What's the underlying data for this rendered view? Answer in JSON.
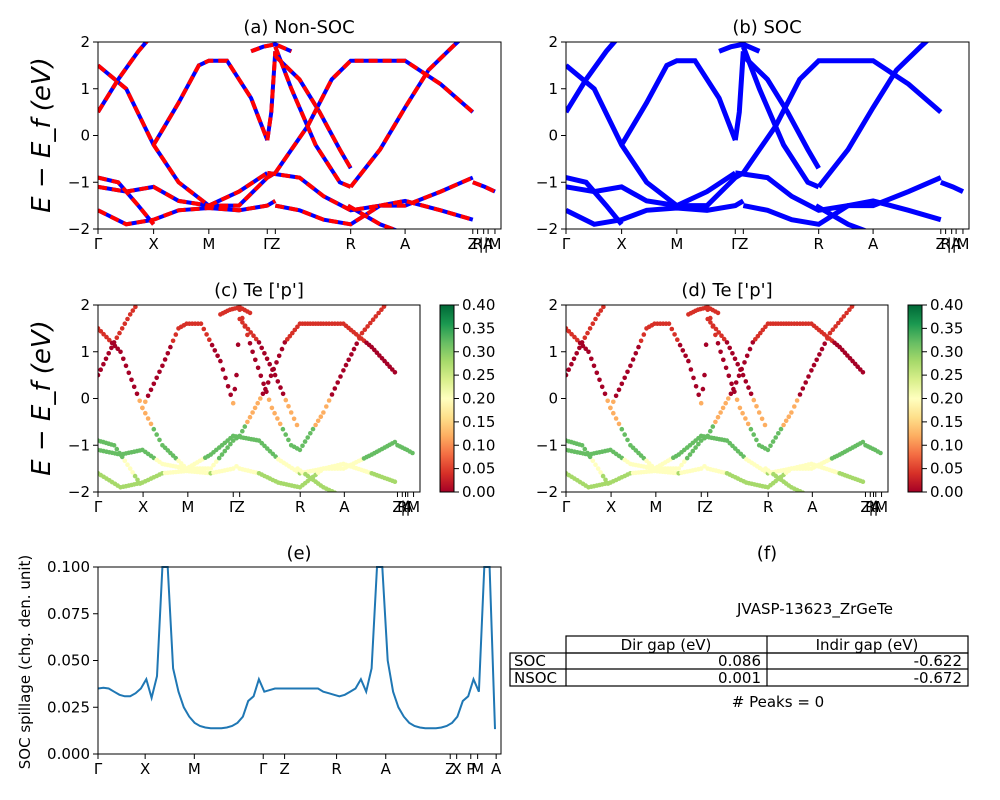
{
  "figure": {
    "material_id": "JVASP-13623_ZrGeTe",
    "peaks_text": "# Peaks = 0"
  },
  "chart_data": [
    {
      "id": "a",
      "type": "line",
      "title": "(a) Non-SOC",
      "ylabel": "E − E_f (eV)",
      "ylim": [
        -2,
        2
      ],
      "yticks": [
        "2",
        "1",
        "0",
        "−1",
        "−2"
      ],
      "xticks": [
        "Γ",
        "X",
        "M",
        "Γ",
        "Z",
        "R",
        "A",
        "Z",
        "R",
        "||",
        "A",
        "M"
      ],
      "series": [
        {
          "style": "blue solid",
          "color": "#0000ff"
        },
        {
          "style": "red dashed",
          "color": "#ff0000"
        }
      ]
    },
    {
      "id": "b",
      "type": "line",
      "title": "(b) SOC",
      "ylim": [
        -2,
        2
      ],
      "yticks": [
        "2",
        "1",
        "0",
        "−1",
        "−2"
      ],
      "xticks": [
        "Γ",
        "X",
        "M",
        "Γ",
        "Z",
        "R",
        "A",
        "Z",
        "R",
        "||",
        "A",
        "M"
      ],
      "series": [
        {
          "style": "blue solid",
          "color": "#0000ff"
        }
      ]
    },
    {
      "id": "c",
      "type": "scatter",
      "title": "(c)  Te ['p']",
      "ylabel": "E − E_f (eV)",
      "ylim": [
        -2,
        2
      ],
      "yticks": [
        "2",
        "1",
        "0",
        "−1",
        "−2"
      ],
      "xticks": [
        "Γ",
        "X",
        "M",
        "Γ",
        "Z",
        "R",
        "A",
        "Z",
        "R",
        "||",
        "A",
        "M"
      ],
      "colorbar": {
        "ticks": [
          "0.40",
          "0.35",
          "0.30",
          "0.25",
          "0.20",
          "0.15",
          "0.10",
          "0.05",
          "0.00"
        ],
        "colormap": "RdYlGn"
      }
    },
    {
      "id": "d",
      "type": "scatter",
      "title": "(d) Te ['p']",
      "ylim": [
        -2,
        2
      ],
      "yticks": [
        "2",
        "1",
        "0",
        "−1",
        "−2"
      ],
      "xticks": [
        "Γ",
        "X",
        "M",
        "Γ",
        "Z",
        "R",
        "A",
        "Z",
        "R",
        "||",
        "A",
        "M"
      ],
      "colorbar": {
        "ticks": [
          "0.40",
          "0.35",
          "0.30",
          "0.25",
          "0.20",
          "0.15",
          "0.10",
          "0.05",
          "0.00"
        ],
        "colormap": "RdYlGn"
      }
    },
    {
      "id": "e",
      "type": "line",
      "title": "(e)",
      "ylabel": "SOC spillage (chg. den. unit)",
      "ylim": [
        0,
        0.12
      ],
      "yticks": [
        "0.100",
        "0.075",
        "0.050",
        "0.025",
        "0.000"
      ],
      "xticks": [
        "Γ",
        "X",
        "M",
        "Γ",
        "Z",
        "R",
        "A",
        "Z",
        "X",
        "P",
        "M",
        "A"
      ],
      "color": "#1f77b4",
      "x": [
        0,
        1,
        2,
        3,
        4,
        5,
        6,
        7,
        8,
        9,
        10,
        11,
        12,
        13,
        14,
        15,
        16,
        17,
        18,
        19,
        20,
        21,
        22,
        23,
        24,
        25,
        26,
        27,
        28,
        29,
        30,
        31,
        32,
        33,
        34,
        35,
        36,
        37,
        38,
        39,
        40,
        41,
        42,
        43,
        44,
        45,
        46,
        47,
        48,
        49,
        50,
        51,
        52,
        53,
        54,
        55,
        56,
        57,
        58,
        59,
        60,
        61,
        62,
        63,
        64,
        65,
        66,
        67,
        68,
        69,
        70,
        71,
        72,
        73,
        74
      ],
      "values": [
        0.042,
        0.0425,
        0.042,
        0.04,
        0.038,
        0.037,
        0.037,
        0.039,
        0.042,
        0.048,
        0.036,
        0.05,
        0.12,
        0.12,
        0.055,
        0.04,
        0.03,
        0.024,
        0.02,
        0.018,
        0.017,
        0.0165,
        0.0165,
        0.0165,
        0.017,
        0.018,
        0.02,
        0.024,
        0.034,
        0.037,
        0.048,
        0.04,
        0.041,
        0.042,
        0.042,
        0.042,
        0.042,
        0.042,
        0.042,
        0.042,
        0.042,
        0.042,
        0.04,
        0.039,
        0.038,
        0.037,
        0.038,
        0.04,
        0.042,
        0.048,
        0.04,
        0.055,
        0.12,
        0.12,
        0.06,
        0.04,
        0.03,
        0.024,
        0.02,
        0.018,
        0.017,
        0.0165,
        0.0165,
        0.0165,
        0.017,
        0.018,
        0.02,
        0.024,
        0.034,
        0.037,
        0.048,
        0.04,
        0.12,
        0.12,
        0.016
      ]
    },
    {
      "id": "f",
      "type": "table",
      "title": "(f)",
      "columns": [
        "",
        "Dir gap (eV)",
        "Indir gap (eV)"
      ],
      "rows": [
        [
          "SOC",
          "0.086",
          "-0.622"
        ],
        [
          "NSOC",
          "0.001",
          "-0.672"
        ]
      ]
    }
  ]
}
